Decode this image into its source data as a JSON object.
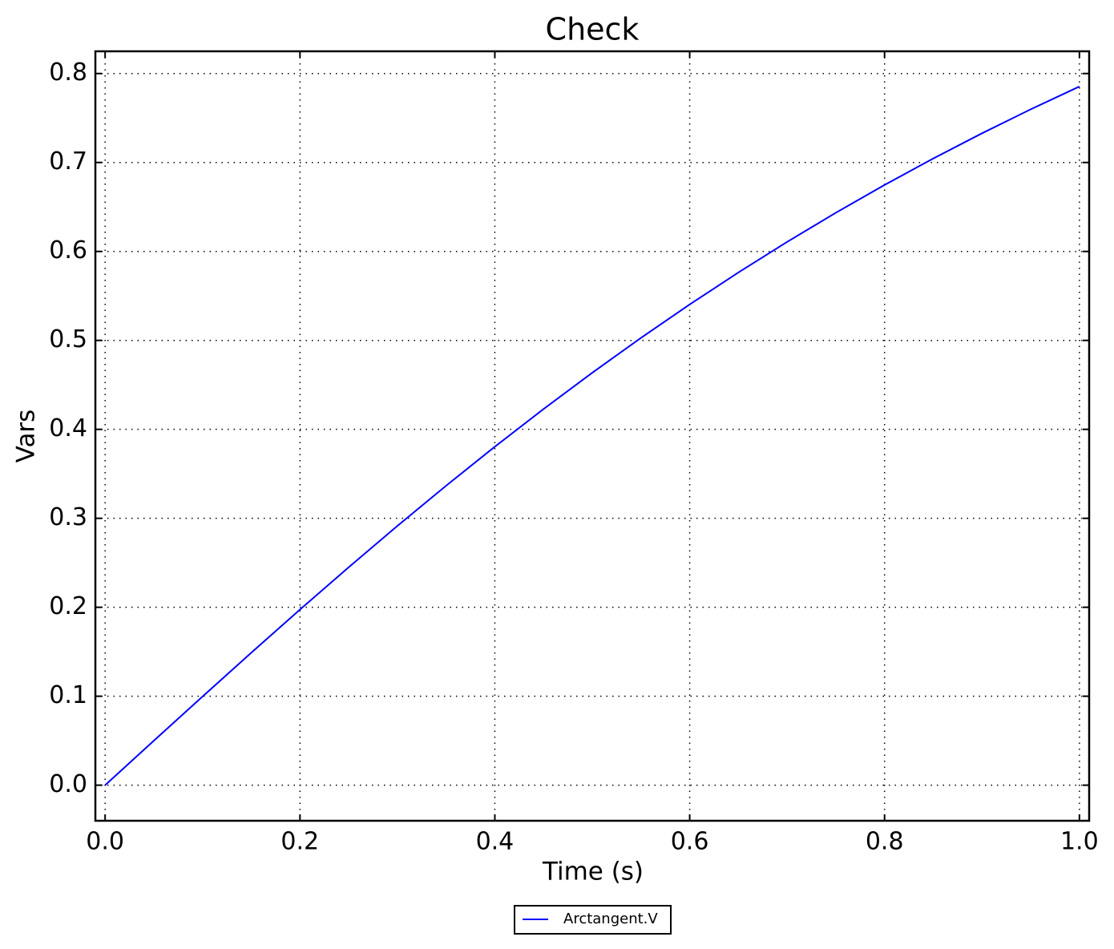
{
  "chart_data": {
    "type": "line",
    "title": "Check",
    "xlabel": "Time (s)",
    "ylabel": "Vars",
    "x": [
      0,
      0.05,
      0.1,
      0.15,
      0.2,
      0.25,
      0.3,
      0.35,
      0.4,
      0.45,
      0.5,
      0.55,
      0.6,
      0.65,
      0.7,
      0.75,
      0.8,
      0.85,
      0.9,
      0.95,
      1.0
    ],
    "series": [
      {
        "name": "Arctangent.V",
        "color": "#0000ff",
        "values": [
          0,
          0.04996,
          0.09967,
          0.14889,
          0.1974,
          0.24498,
          0.29146,
          0.33667,
          0.38051,
          0.42285,
          0.46365,
          0.50285,
          0.54042,
          0.57637,
          0.61072,
          0.6435,
          0.67474,
          0.7045,
          0.73282,
          0.75976,
          0.7854
        ]
      }
    ],
    "xlim": [
      -0.01,
      1.01
    ],
    "ylim": [
      -0.04,
      0.825
    ],
    "xticks": [
      {
        "value": 0,
        "label": "0.0"
      },
      0.2,
      0.4,
      0.6,
      0.8,
      {
        "value": 1,
        "label": "1.0"
      }
    ],
    "yticks": [
      {
        "value": 0,
        "label": "0.0"
      },
      0.1,
      0.2,
      0.3,
      0.4,
      0.5,
      0.6,
      0.7,
      0.8
    ],
    "grid": true,
    "legend": "bottom"
  }
}
